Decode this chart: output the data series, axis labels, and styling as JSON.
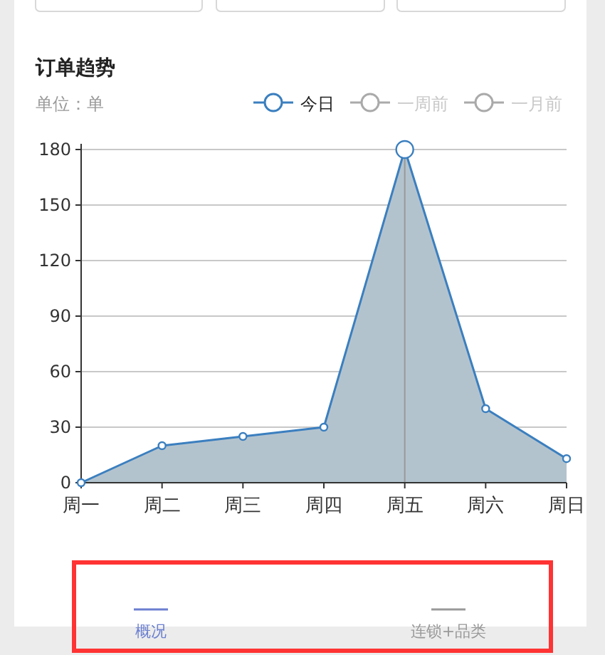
{
  "chart_data": {
    "type": "area",
    "title": "订单趋势",
    "ylabel": "单位：单",
    "categories": [
      "周一",
      "周二",
      "周三",
      "周四",
      "周五",
      "周六",
      "周日"
    ],
    "series": [
      {
        "name": "今日",
        "color": "#3b7fbf",
        "values": [
          0,
          20,
          25,
          30,
          180,
          40,
          13
        ]
      },
      {
        "name": "一周前",
        "color": "#aaaaaa",
        "values": [
          null,
          null,
          null,
          null,
          null,
          null,
          null
        ]
      },
      {
        "name": "一月前",
        "color": "#aaaaaa",
        "values": [
          null,
          null,
          null,
          null,
          null,
          null,
          null
        ]
      }
    ],
    "ylim": [
      0,
      180
    ],
    "yticks": [
      0,
      30,
      60,
      90,
      120,
      150,
      180
    ],
    "grid": "y",
    "legend": "top right",
    "marker": "circle",
    "ref_lines": [
      {
        "axis": "x",
        "value": "周五",
        "color": "#999999"
      }
    ],
    "annotations": [
      "概况",
      "连锁+品类"
    ]
  }
}
